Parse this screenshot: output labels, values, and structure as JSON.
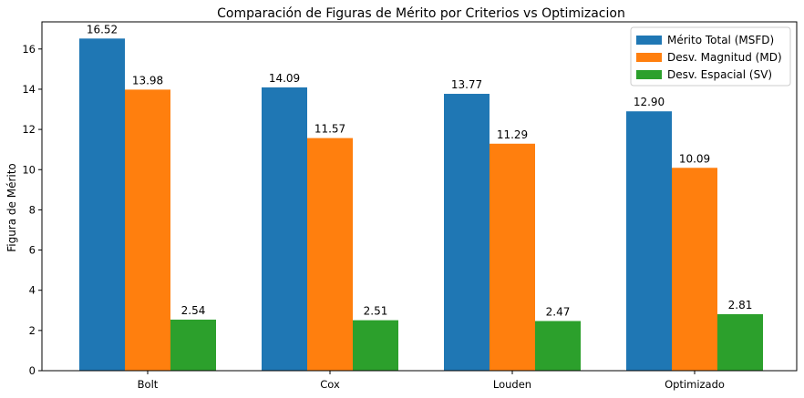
{
  "chart_data": {
    "type": "bar",
    "title": "Comparación de Figuras de Mérito por Criterios vs Optimizacion",
    "xlabel": "",
    "ylabel": "Figura de Mérito",
    "ylim": [
      0,
      17.35
    ],
    "yticks": [
      0,
      2,
      4,
      6,
      8,
      10,
      12,
      14,
      16
    ],
    "categories": [
      "Bolt",
      "Cox",
      "Louden",
      "Optimizado"
    ],
    "series": [
      {
        "name": "Mérito Total (MSFD)",
        "color": "#1f77b4",
        "values": [
          16.52,
          14.09,
          13.77,
          12.9
        ],
        "labels": [
          "16.52",
          "14.09",
          "13.77",
          "12.90"
        ]
      },
      {
        "name": "Desv. Magnitud (MD)",
        "color": "#ff7f0e",
        "values": [
          13.98,
          11.57,
          11.29,
          10.09
        ],
        "labels": [
          "13.98",
          "11.57",
          "11.29",
          "10.09"
        ]
      },
      {
        "name": "Desv. Espacial (SV)",
        "color": "#2ca02c",
        "values": [
          2.54,
          2.51,
          2.47,
          2.81
        ],
        "labels": [
          "2.54",
          "2.51",
          "2.47",
          "2.81"
        ]
      }
    ],
    "grid": false,
    "legend_position": "top-right"
  }
}
